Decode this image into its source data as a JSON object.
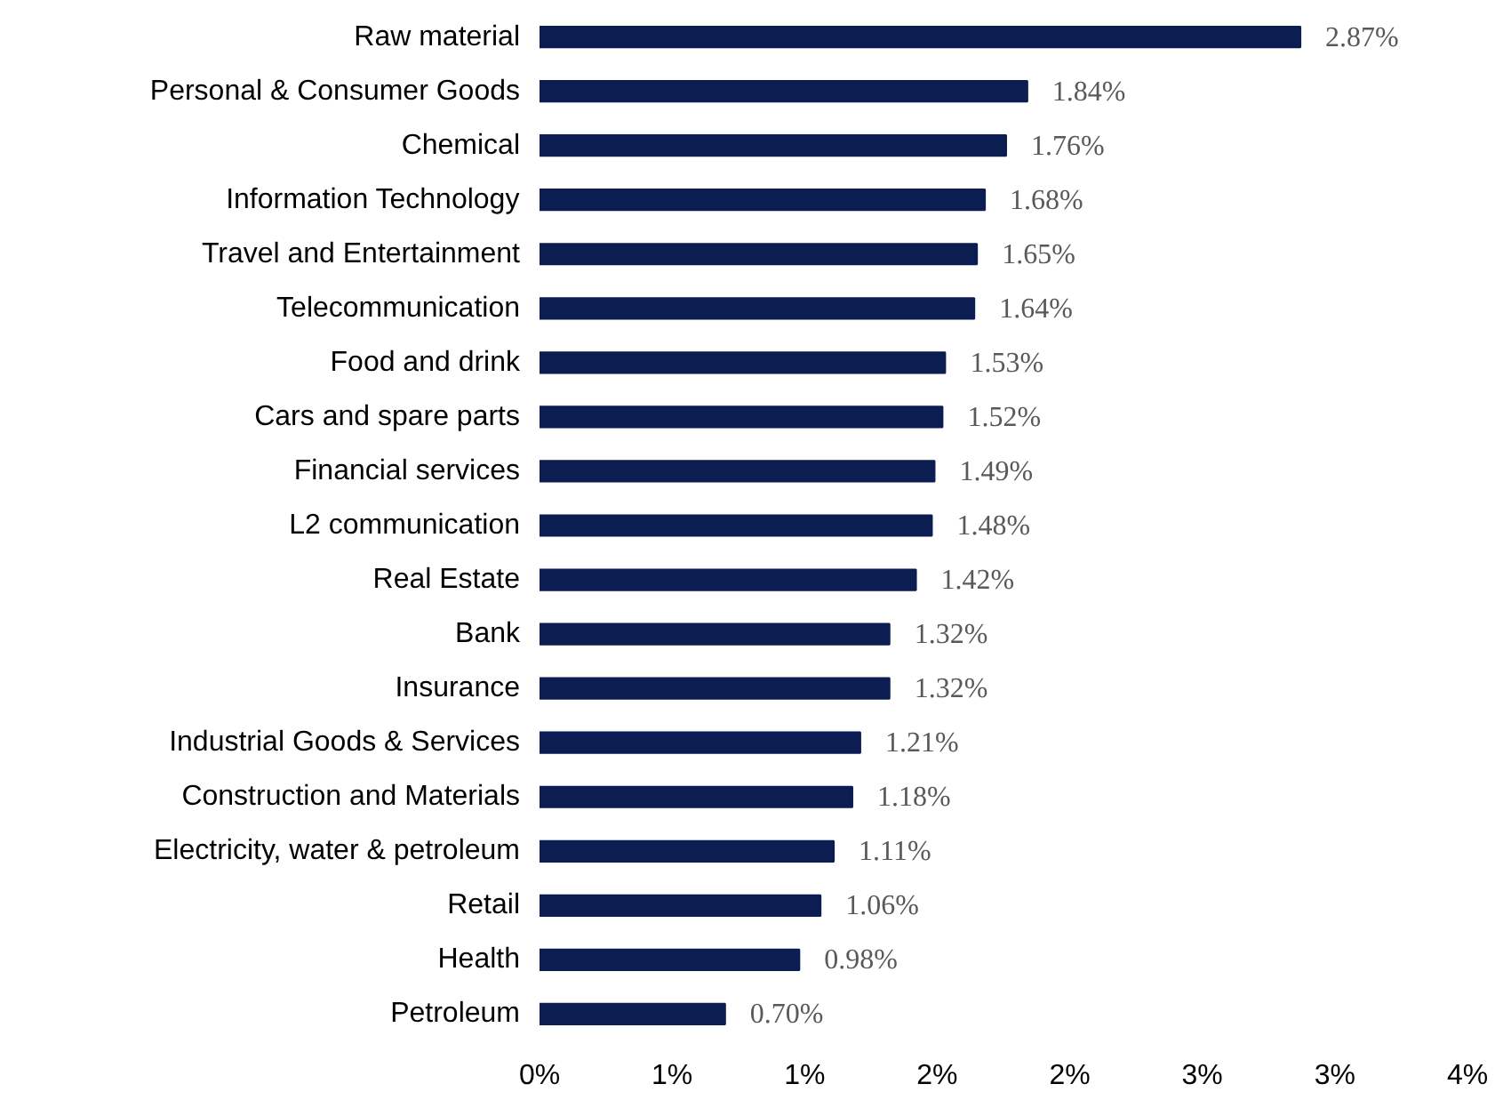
{
  "chart_data": {
    "type": "bar",
    "orientation": "horizontal",
    "categories": [
      "Raw material",
      "Personal & Consumer Goods",
      "Chemical",
      "Information Technology",
      "Travel and Entertainment",
      "Telecommunication",
      "Food and drink",
      "Cars and spare parts",
      "Financial services",
      "L2 communication",
      "Real Estate",
      "Bank",
      "Insurance",
      "Industrial Goods & Services",
      "Construction and Materials",
      "Electricity, water & petroleum",
      "Retail",
      "Health",
      "Petroleum"
    ],
    "values": [
      2.87,
      1.84,
      1.76,
      1.68,
      1.65,
      1.64,
      1.53,
      1.52,
      1.49,
      1.48,
      1.42,
      1.32,
      1.32,
      1.21,
      1.18,
      1.11,
      1.06,
      0.98,
      0.7
    ],
    "value_labels": [
      "2.87%",
      "1.84%",
      "1.76%",
      "1.68%",
      "1.65%",
      "1.64%",
      "1.53%",
      "1.52%",
      "1.49%",
      "1.48%",
      "1.42%",
      "1.32%",
      "1.32%",
      "1.21%",
      "1.18%",
      "1.11%",
      "1.06%",
      "0.98%",
      "0.70%"
    ],
    "color": "#0b1d51",
    "xlim": [
      0,
      3.5
    ],
    "xticks": [
      {
        "value": 0,
        "label": "0%"
      },
      {
        "value": 0.5,
        "label": "1%"
      },
      {
        "value": 1.0,
        "label": "1%"
      },
      {
        "value": 1.5,
        "label": "2%"
      },
      {
        "value": 2.0,
        "label": "2%"
      },
      {
        "value": 2.5,
        "label": "3%"
      },
      {
        "value": 3.0,
        "label": "3%"
      },
      {
        "value": 3.5,
        "label": "4%"
      }
    ],
    "grid": false
  }
}
